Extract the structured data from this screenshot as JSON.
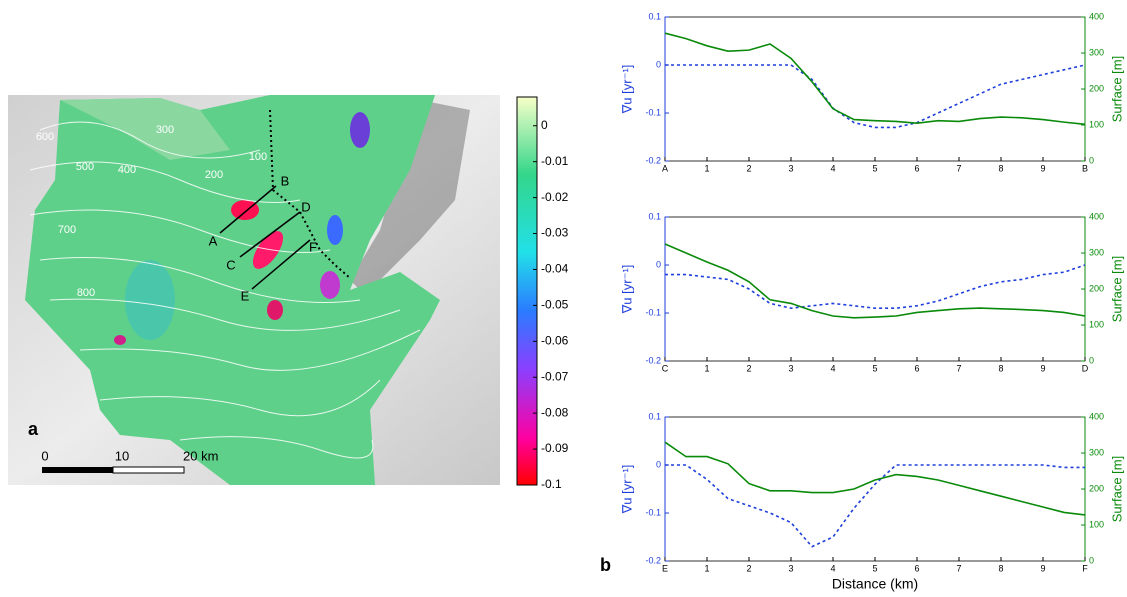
{
  "map": {
    "panel_label": "a",
    "contour_labels": [
      "600",
      "300",
      "500",
      "400",
      "100",
      "200",
      "700",
      "800"
    ],
    "profile_labels": [
      "A",
      "B",
      "C",
      "D",
      "E",
      "F"
    ],
    "scale_labels": [
      "0",
      "10",
      "20 km"
    ],
    "colorbar": {
      "lim": [
        -0.1,
        0.008
      ],
      "ticks": [
        0,
        -0.01,
        -0.02,
        -0.03,
        -0.04,
        -0.05,
        -0.06,
        -0.07,
        -0.08,
        -0.09,
        -0.1
      ]
    }
  },
  "chart_data": [
    {
      "type": "line",
      "ylabel": "∇u [yr⁻¹]",
      "y2label": "Surface [m]",
      "x": [
        0,
        0.5,
        1,
        1.5,
        2,
        2.5,
        3,
        3.5,
        4,
        4.5,
        5,
        5.5,
        6,
        6.5,
        7,
        7.5,
        8,
        8.5,
        9,
        9.5,
        10
      ],
      "xlim": [
        0,
        10
      ],
      "xticks": [
        {
          "value": 0,
          "label": "A"
        },
        1,
        2,
        3,
        4,
        5,
        6,
        7,
        8,
        9,
        {
          "value": 10,
          "label": "B"
        }
      ],
      "ylim": [
        -0.2,
        0.1
      ],
      "yticks": [
        -0.2,
        -0.1,
        0,
        0.1
      ],
      "y2lim": [
        0,
        400
      ],
      "y2ticks": [
        0,
        100,
        200,
        300,
        400
      ],
      "series": [
        {
          "color": "#1f3fdc",
          "dash": true,
          "values": [
            0,
            0,
            0,
            0,
            0,
            0,
            0,
            -0.03,
            -0.09,
            -0.12,
            -0.13,
            -0.13,
            -0.12,
            -0.1,
            -0.08,
            -0.06,
            -0.04,
            -0.03,
            -0.02,
            -0.01,
            0
          ]
        },
        {
          "color": "#0a8a0a",
          "axis": "y2",
          "values": [
            355,
            340,
            320,
            305,
            308,
            325,
            285,
            220,
            145,
            115,
            112,
            110,
            105,
            112,
            110,
            118,
            122,
            120,
            115,
            108,
            102
          ]
        }
      ]
    },
    {
      "type": "line",
      "ylabel": "∇u [yr⁻¹]",
      "y2label": "Surface [m]",
      "x": [
        0,
        0.5,
        1,
        1.5,
        2,
        2.5,
        3,
        3.5,
        4,
        4.5,
        5,
        5.5,
        6,
        6.5,
        7,
        7.5,
        8,
        8.5,
        9,
        9.5,
        10
      ],
      "xlim": [
        0,
        10
      ],
      "xticks": [
        {
          "value": 0,
          "label": "C"
        },
        1,
        2,
        3,
        4,
        5,
        6,
        7,
        8,
        9,
        {
          "value": 10,
          "label": "D"
        }
      ],
      "ylim": [
        -0.2,
        0.1
      ],
      "yticks": [
        -0.2,
        -0.1,
        0,
        0.1
      ],
      "y2lim": [
        0,
        400
      ],
      "y2ticks": [
        0,
        100,
        200,
        300,
        400
      ],
      "series": [
        {
          "color": "#1f3fdc",
          "dash": true,
          "values": [
            -0.02,
            -0.02,
            -0.025,
            -0.03,
            -0.05,
            -0.08,
            -0.09,
            -0.085,
            -0.08,
            -0.085,
            -0.09,
            -0.09,
            -0.085,
            -0.075,
            -0.06,
            -0.045,
            -0.035,
            -0.03,
            -0.02,
            -0.015,
            0
          ]
        },
        {
          "color": "#0a8a0a",
          "axis": "y2",
          "values": [
            325,
            300,
            275,
            252,
            220,
            170,
            160,
            140,
            125,
            120,
            122,
            125,
            135,
            140,
            145,
            147,
            145,
            143,
            140,
            135,
            125
          ]
        }
      ]
    },
    {
      "type": "line",
      "ylabel": "∇u [yr⁻¹]",
      "y2label": "Surface [m]",
      "xlabel": "Distance (km)",
      "panel_label": "b",
      "x": [
        0,
        0.5,
        1,
        1.5,
        2,
        2.5,
        3,
        3.5,
        4,
        4.5,
        5,
        5.5,
        6,
        6.5,
        7,
        7.5,
        8,
        8.5,
        9,
        9.5,
        10
      ],
      "xlim": [
        0,
        10
      ],
      "xticks": [
        {
          "value": 0,
          "label": "E"
        },
        1,
        2,
        3,
        4,
        5,
        6,
        7,
        8,
        9,
        {
          "value": 10,
          "label": "F"
        }
      ],
      "ylim": [
        -0.2,
        0.1
      ],
      "yticks": [
        -0.2,
        -0.1,
        0,
        0.1
      ],
      "y2lim": [
        0,
        400
      ],
      "y2ticks": [
        0,
        100,
        200,
        300,
        400
      ],
      "series": [
        {
          "color": "#1f3fdc",
          "dash": true,
          "values": [
            0,
            0,
            -0.03,
            -0.07,
            -0.085,
            -0.1,
            -0.12,
            -0.17,
            -0.15,
            -0.09,
            -0.04,
            0,
            0,
            0,
            0,
            0,
            0,
            0,
            0,
            -0.005,
            -0.005
          ]
        },
        {
          "color": "#0a8a0a",
          "axis": "y2",
          "values": [
            330,
            290,
            290,
            270,
            215,
            195,
            195,
            190,
            190,
            200,
            225,
            240,
            235,
            225,
            210,
            195,
            180,
            165,
            150,
            135,
            128
          ]
        }
      ]
    }
  ]
}
